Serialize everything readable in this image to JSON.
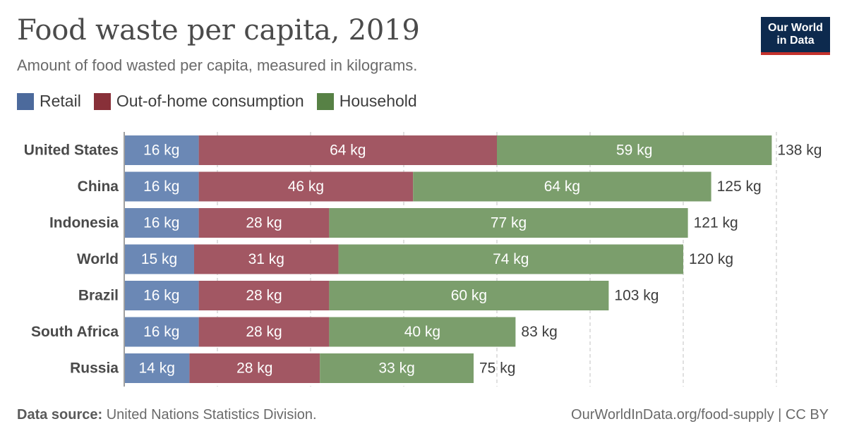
{
  "header": {
    "title": "Food waste per capita, 2019",
    "subtitle": "Amount of food wasted per capita, measured in kilograms.",
    "logo_line1": "Our World",
    "logo_line2": "in Data"
  },
  "footer": {
    "source_label": "Data source:",
    "source_text": "United Nations Statistics Division.",
    "right_text": "OurWorldInData.org/food-supply | CC BY"
  },
  "chart_data": {
    "type": "bar",
    "orientation": "horizontal",
    "stacked": true,
    "title": "Food waste per capita, 2019",
    "subtitle": "Amount of food wasted per capita, measured in kilograms.",
    "unit": "kg",
    "categories": [
      "United States",
      "China",
      "Indonesia",
      "World",
      "Brazil",
      "South Africa",
      "Russia"
    ],
    "series": [
      {
        "name": "Retail",
        "color": "#6b88b5",
        "legend_color": "#4c6a9c",
        "values": [
          16,
          16,
          16,
          15,
          16,
          16,
          14
        ]
      },
      {
        "name": "Out-of-home consumption",
        "color": "#a25763",
        "legend_color": "#883039",
        "values": [
          64,
          46,
          28,
          31,
          28,
          28,
          28
        ]
      },
      {
        "name": "Household",
        "color": "#7b9e6c",
        "legend_color": "#578145",
        "values": [
          59,
          64,
          77,
          74,
          60,
          40,
          33
        ]
      }
    ],
    "totals": [
      138,
      125,
      121,
      120,
      103,
      83,
      75
    ],
    "xlim": [
      0,
      140
    ],
    "grid": true,
    "legend": "top-left"
  }
}
